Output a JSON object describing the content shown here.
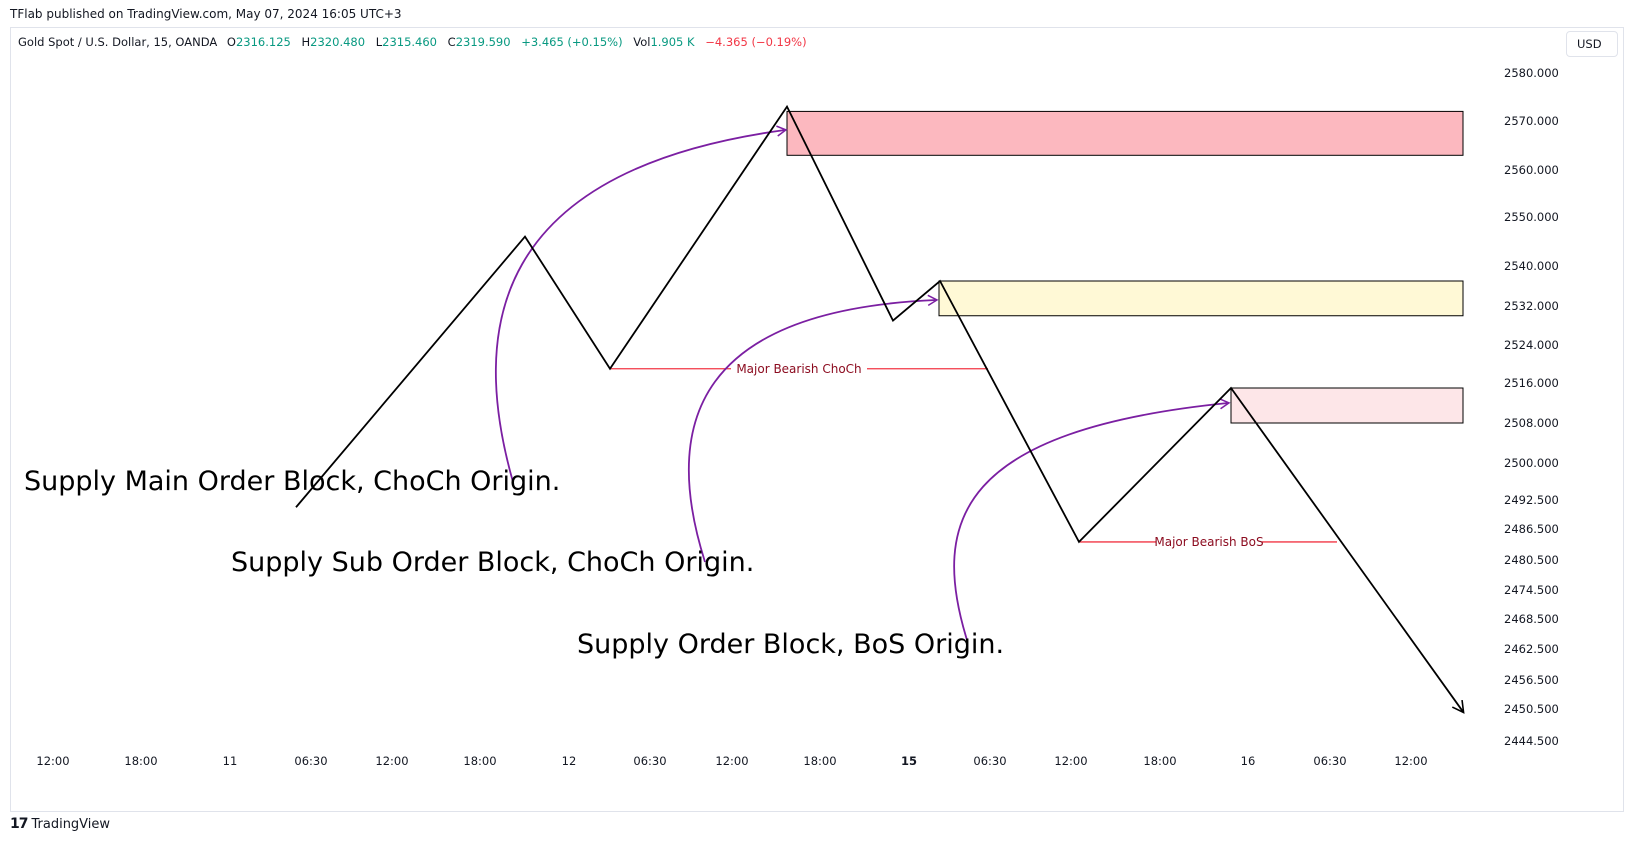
{
  "header": {
    "published_by": "TFlab published on TradingView.com, May 07, 2024 16:05 UTC+3"
  },
  "legend": {
    "symbol": "Gold Spot / U.S. Dollar, 15, OANDA",
    "open_key": "O",
    "open": "2316.125",
    "high_key": "H",
    "high": "2320.480",
    "low_key": "L",
    "low": "2315.460",
    "close_key": "C",
    "close": "2319.590",
    "change": "+3.465 (+0.15%)",
    "vol_key": "Vol",
    "vol": "1.905 K",
    "vol_change": "−4.365 (−0.19%)"
  },
  "currency": "USD",
  "footer": {
    "brand": "TradingView",
    "logo_glyph": "17"
  },
  "colors": {
    "price_line": "#000000",
    "arrow": "#7b1fa2",
    "level_line": "#f23645",
    "level_text": "#8b0a1e",
    "main_ob_fill": "#fcb8bf",
    "sub_ob_fill": "#fff9d6",
    "bos_ob_fill": "#fde6e8",
    "up": "#089981",
    "down": "#f23645"
  },
  "chart_data": {
    "type": "line",
    "y_axis": {
      "ticks": [
        2580.0,
        2570.0,
        2560.0,
        2550.0,
        2540.0,
        2532.0,
        2524.0,
        2516.0,
        2508.0,
        2500.0,
        2492.5,
        2486.5,
        2480.5,
        2474.5,
        2468.5,
        2462.5,
        2456.5,
        2450.5,
        2444.5
      ],
      "tick_labels": [
        "2580.000",
        "2570.000",
        "2560.000",
        "2550.000",
        "2540.000",
        "2532.000",
        "2524.000",
        "2516.000",
        "2508.000",
        "2500.000",
        "2492.500",
        "2486.500",
        "2480.500",
        "2474.500",
        "2468.500",
        "2462.500",
        "2456.500",
        "2450.500",
        "2444.500"
      ]
    },
    "x_axis": {
      "tick_labels": [
        "12:00",
        "18:00",
        "11",
        "06:30",
        "12:00",
        "18:00",
        "12",
        "06:30",
        "12:00",
        "18:00",
        "15",
        "06:30",
        "12:00",
        "18:00",
        "16",
        "06:30",
        "12:00"
      ],
      "bold_labels": [
        "15"
      ]
    },
    "price_path": [
      {
        "x": "11 04:45",
        "y": 2491
      },
      {
        "x": "11 20:00",
        "y": 2546
      },
      {
        "x": "12 02:00",
        "y": 2519
      },
      {
        "x": "12 15:00",
        "y": 2573
      },
      {
        "x": "12 21:00",
        "y": 2529
      },
      {
        "x": "15 02:30",
        "y": 2537
      },
      {
        "x": "15 12:30",
        "y": 2484
      },
      {
        "x": "15 23:00",
        "y": 2515
      },
      {
        "x": "16 14:30",
        "y": 2450
      }
    ],
    "zones": [
      {
        "name": "Supply Main Order Block",
        "y_top": 2572,
        "y_bottom": 2563
      },
      {
        "name": "Supply Sub Order Block",
        "y_top": 2537,
        "y_bottom": 2530
      },
      {
        "name": "Supply Order Block",
        "y_top": 2515,
        "y_bottom": 2508
      }
    ],
    "levels": [
      {
        "label": "Major Bearish ChoCh",
        "y": 2519
      },
      {
        "label": "Major Bearish BoS",
        "y": 2484
      }
    ],
    "annotations": [
      "Supply Main Order Block, ChoCh Origin.",
      "Supply Sub Order Block, ChoCh Origin.",
      "Supply Order Block, BoS Origin."
    ]
  }
}
